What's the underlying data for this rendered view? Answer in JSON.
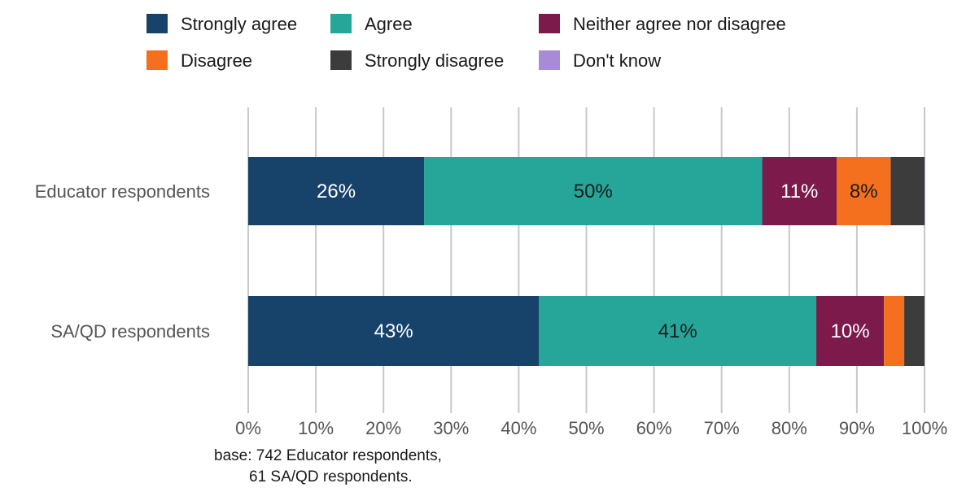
{
  "chart_data": {
    "type": "bar",
    "orientation": "horizontal",
    "stacked": true,
    "title": "",
    "xlabel": "",
    "ylabel": "",
    "xlim": [
      0,
      100
    ],
    "grid": true,
    "legend_position": "top",
    "categories": [
      "Educator respondents",
      "SA/QD respondents"
    ],
    "x_ticks": [
      "0%",
      "10%",
      "20%",
      "30%",
      "40%",
      "50%",
      "60%",
      "70%",
      "80%",
      "90%",
      "100%"
    ],
    "series": [
      {
        "name": "Strongly agree",
        "color": "#17436b",
        "label_color": "#ffffff",
        "values": [
          26,
          43
        ],
        "labels": [
          "26%",
          "43%"
        ]
      },
      {
        "name": "Agree",
        "color": "#26a599",
        "label_color": "#1a1a1a",
        "values": [
          50,
          41
        ],
        "labels": [
          "50%",
          "41%"
        ]
      },
      {
        "name": "Neither agree nor disagree",
        "color": "#7b1a4b",
        "label_color": "#ffffff",
        "values": [
          11,
          10
        ],
        "labels": [
          "11%",
          "10%"
        ]
      },
      {
        "name": "Disagree",
        "color": "#f4701f",
        "label_color": "#1a1a1a",
        "values": [
          8,
          3
        ],
        "labels": [
          "8%",
          ""
        ]
      },
      {
        "name": "Strongly disagree",
        "color": "#3c3c3c",
        "label_color": "#ffffff",
        "values": [
          5,
          3
        ],
        "labels": [
          "",
          ""
        ]
      },
      {
        "name": "Don't know",
        "color": "#a88bd6",
        "label_color": "#1a1a1a",
        "values": [
          0.2,
          0
        ],
        "labels": [
          "",
          ""
        ]
      }
    ],
    "note": [
      "base: 742 Educator respondents,",
      "61 SA/QD respondents."
    ]
  }
}
